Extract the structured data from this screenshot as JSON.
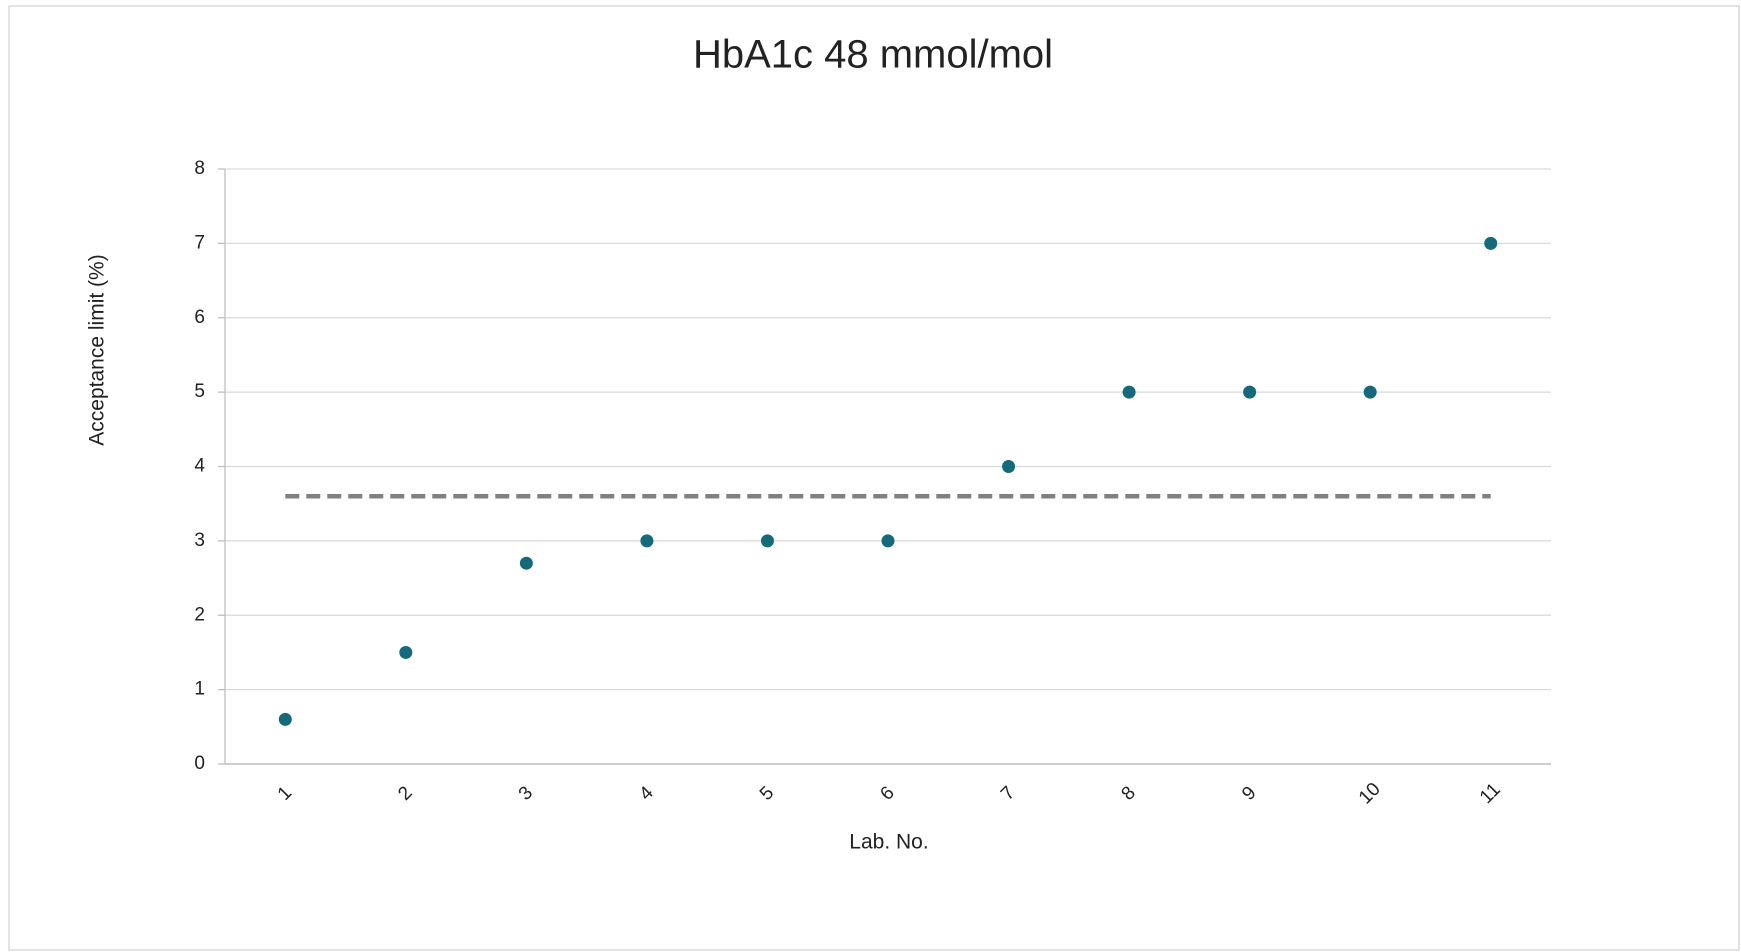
{
  "chart_data": {
    "type": "scatter",
    "title": "HbA1c 48 mmol/mol",
    "x_label": "Lab. No.",
    "y_label": "Acceptance limit (%)",
    "categories": [
      "1",
      "2",
      "3",
      "4",
      "5",
      "6",
      "7",
      "8",
      "9",
      "10",
      "11"
    ],
    "values": [
      0.6,
      1.5,
      2.7,
      3,
      3,
      3,
      4,
      5,
      5,
      5,
      7
    ],
    "color": "#14697b",
    "reference_line": {
      "value": 3.6,
      "color": "#808080",
      "dashed": true
    },
    "ylim": [
      0,
      8
    ],
    "yticks": [
      0,
      1,
      2,
      3,
      4,
      5,
      6,
      7,
      8
    ],
    "grid": true
  }
}
